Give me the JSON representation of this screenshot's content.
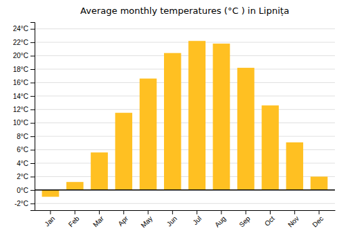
{
  "chart_data": {
    "type": "bar",
    "title": "Average monthly temperatures (°C ) in Lipnița",
    "categories": [
      "Jan",
      "Feb",
      "Mar",
      "Apr",
      "May",
      "Jun",
      "Jul",
      "Aug",
      "Sep",
      "Oct",
      "Nov",
      "Dec"
    ],
    "values": [
      -1.0,
      1.2,
      5.6,
      11.5,
      16.6,
      20.4,
      22.2,
      21.8,
      18.2,
      12.6,
      7.1,
      2.0
    ],
    "color": "#FFC022",
    "ylim": [
      -3,
      25
    ],
    "yticks": [
      {
        "value": -2,
        "label": "-2°C"
      },
      {
        "value": 0,
        "label": "0°C"
      },
      {
        "value": 2,
        "label": "2°C"
      },
      {
        "value": 4,
        "label": "4°C"
      },
      {
        "value": 6,
        "label": "6°C"
      },
      {
        "value": 8,
        "label": "8°C"
      },
      {
        "value": 10,
        "label": "10°C"
      },
      {
        "value": 12,
        "label": "12°C"
      },
      {
        "value": 14,
        "label": "14°C"
      },
      {
        "value": 16,
        "label": "16°C"
      },
      {
        "value": 18,
        "label": "18°C"
      },
      {
        "value": 20,
        "label": "20°C"
      },
      {
        "value": 22,
        "label": "22°C"
      },
      {
        "value": 24,
        "label": "24°C"
      }
    ],
    "grid": true
  }
}
